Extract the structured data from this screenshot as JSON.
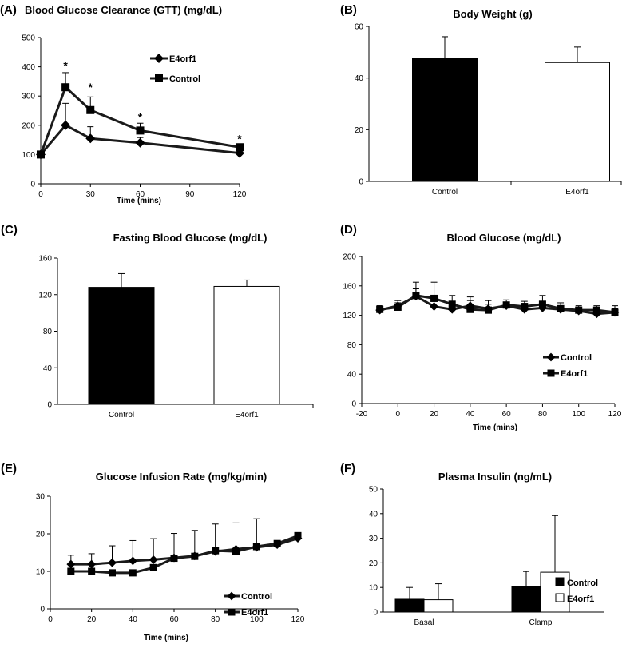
{
  "colors": {
    "ink": "#000000",
    "fill_dark": "#000000",
    "fill_light": "#ffffff",
    "line": "#1a1a1a"
  },
  "chart_data": [
    {
      "id": "A",
      "panel": "(A)",
      "type": "line",
      "title": "Blood Glucose Clearance (GTT) (mg/dL)",
      "xlabel": "Time (mins)",
      "ylabel": "",
      "xlim": [
        0,
        120
      ],
      "ylim": [
        0,
        500
      ],
      "xticks": [
        "0",
        "30",
        "60",
        "90",
        "120"
      ],
      "xtick_values": [
        0,
        30,
        60,
        90,
        120
      ],
      "yticks": [
        "0",
        "100",
        "200",
        "300",
        "400",
        "500"
      ],
      "ytick_values": [
        0,
        100,
        200,
        300,
        400,
        500
      ],
      "legend_position": "top-right",
      "series": [
        {
          "name": "E4orf1",
          "marker": "diamond",
          "x": [
            0,
            15,
            30,
            60,
            120
          ],
          "values": [
            100,
            200,
            155,
            140,
            105
          ],
          "err": [
            0,
            75,
            40,
            18,
            8
          ]
        },
        {
          "name": "Control",
          "marker": "square",
          "x": [
            0,
            15,
            30,
            60,
            120
          ],
          "values": [
            100,
            330,
            252,
            182,
            125
          ],
          "err": [
            0,
            50,
            45,
            25,
            10
          ]
        }
      ],
      "annotations": [
        {
          "text": "*",
          "x": 15,
          "y": 405
        },
        {
          "text": "*",
          "x": 30,
          "y": 330
        },
        {
          "text": "*",
          "x": 60,
          "y": 228
        },
        {
          "text": "*",
          "x": 120,
          "y": 155
        }
      ]
    },
    {
      "id": "B",
      "panel": "(B)",
      "type": "bar",
      "title": "Body Weight (g)",
      "xlabel": "",
      "ylabel": "",
      "ylim": [
        0,
        60
      ],
      "yticks": [
        "0",
        "20",
        "40",
        "60"
      ],
      "ytick_values": [
        0,
        20,
        40,
        60
      ],
      "categories": [
        "Control",
        "E4orf1"
      ],
      "values": [
        47.5,
        46
      ],
      "err": [
        8.5,
        6
      ],
      "fills": [
        "dark",
        "light"
      ]
    },
    {
      "id": "C",
      "panel": "(C)",
      "type": "bar",
      "title": "Fasting Blood Glucose (mg/dL)",
      "xlabel": "",
      "ylabel": "",
      "ylim": [
        0,
        160
      ],
      "yticks": [
        "0",
        "40",
        "80",
        "120",
        "160"
      ],
      "ytick_values": [
        0,
        40,
        80,
        120,
        160
      ],
      "categories": [
        "Control",
        "E4orf1"
      ],
      "values": [
        128,
        129
      ],
      "err": [
        15,
        7
      ],
      "fills": [
        "dark",
        "light"
      ]
    },
    {
      "id": "D",
      "panel": "(D)",
      "type": "line",
      "title": "Blood Glucose (mg/dL)",
      "xlabel": "Time (mins)",
      "ylabel": "",
      "xlim": [
        -20,
        120
      ],
      "ylim": [
        0,
        200
      ],
      "xticks": [
        "-20",
        "0",
        "20",
        "40",
        "60",
        "80",
        "100",
        "120"
      ],
      "xtick_values": [
        -20,
        0,
        20,
        40,
        60,
        80,
        100,
        120
      ],
      "yticks": [
        "0",
        "40",
        "80",
        "120",
        "160",
        "200"
      ],
      "ytick_values": [
        0,
        40,
        80,
        120,
        160,
        200
      ],
      "legend_position": "bottom-right",
      "series": [
        {
          "name": "Control",
          "marker": "diamond",
          "x": [
            -10,
            0,
            10,
            20,
            30,
            40,
            50,
            60,
            70,
            80,
            90,
            100,
            110,
            120
          ],
          "values": [
            127,
            133,
            146,
            132,
            128,
            133,
            129,
            133,
            128,
            130,
            128,
            126,
            122,
            124
          ],
          "err": [
            6,
            7,
            10,
            12,
            8,
            7,
            6,
            5,
            5,
            7,
            5,
            5,
            6,
            5
          ]
        },
        {
          "name": "E4orf1",
          "marker": "square",
          "x": [
            -10,
            0,
            10,
            20,
            30,
            40,
            50,
            60,
            70,
            80,
            90,
            100,
            110,
            120
          ],
          "values": [
            128,
            131,
            147,
            143,
            135,
            128,
            127,
            134,
            132,
            135,
            129,
            127,
            127,
            124
          ],
          "err": [
            5,
            6,
            18,
            22,
            12,
            17,
            13,
            7,
            7,
            12,
            8,
            6,
            6,
            9
          ]
        }
      ]
    },
    {
      "id": "E",
      "panel": "(E)",
      "type": "line",
      "title": "Glucose Infusion Rate (mg/kg/min)",
      "xlabel": "Time (mins)",
      "ylabel": "",
      "xlim": [
        0,
        120
      ],
      "ylim": [
        0,
        30
      ],
      "xticks": [
        "0",
        "20",
        "40",
        "60",
        "80",
        "100",
        "120"
      ],
      "xtick_values": [
        0,
        20,
        40,
        60,
        80,
        100,
        120
      ],
      "yticks": [
        "0",
        "10",
        "20",
        "30"
      ],
      "ytick_values": [
        0,
        10,
        20,
        30
      ],
      "legend_position": "bottom-right",
      "series": [
        {
          "name": "Control",
          "marker": "diamond",
          "x": [
            10,
            20,
            30,
            40,
            50,
            60,
            70,
            80,
            90,
            100,
            110,
            120
          ],
          "values": [
            11.9,
            11.9,
            12.3,
            12.8,
            13.1,
            13.6,
            14.1,
            15.3,
            15.9,
            16.4,
            17.1,
            18.8
          ],
          "err": [
            2.4,
            2.8,
            4.5,
            5.4,
            5.6,
            6.5,
            6.8,
            7.3,
            7.0,
            7.6,
            0,
            0
          ]
        },
        {
          "name": "E4orf1",
          "marker": "square",
          "x": [
            10,
            20,
            30,
            40,
            50,
            60,
            70,
            80,
            90,
            100,
            110,
            120
          ],
          "values": [
            10,
            10,
            9.6,
            9.6,
            11,
            13.5,
            14,
            15.5,
            15.3,
            16.6,
            17.4,
            19.5
          ],
          "err": [
            0,
            0,
            0,
            0,
            0,
            0,
            0,
            0,
            0,
            0,
            0,
            0
          ]
        }
      ]
    },
    {
      "id": "F",
      "panel": "(F)",
      "type": "bar",
      "title": "Plasma Insulin (ng/mL)",
      "xlabel": "",
      "ylabel": "",
      "ylim": [
        0,
        50
      ],
      "yticks": [
        "0",
        "10",
        "20",
        "30",
        "40",
        "50"
      ],
      "ytick_values": [
        0,
        10,
        20,
        30,
        40,
        50
      ],
      "categories": [
        "Basal",
        "Clamp"
      ],
      "legend_position": "right",
      "series": [
        {
          "name": "Control",
          "fill": "dark",
          "values": [
            5.2,
            10.5
          ],
          "err": [
            4.8,
            6
          ]
        },
        {
          "name": "E4orf1",
          "fill": "light",
          "values": [
            5,
            16.2
          ],
          "err": [
            6.5,
            23
          ]
        }
      ]
    }
  ]
}
